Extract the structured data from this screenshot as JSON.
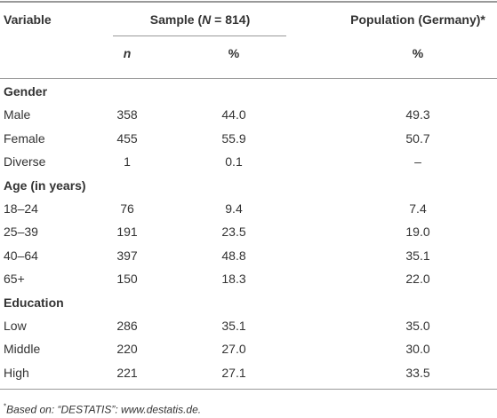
{
  "table": {
    "header": {
      "variable": "Variable",
      "sample": [
        "Sample (",
        "N",
        " = 814)"
      ],
      "population": "Population (Germany)*",
      "n": "n",
      "sample_pct": "%",
      "population_pct": "%"
    },
    "sections": [
      {
        "title": "Gender",
        "rows": [
          [
            "Male",
            "358",
            "44.0",
            "49.3"
          ],
          [
            "Female",
            "455",
            "55.9",
            "50.7"
          ],
          [
            "Diverse",
            "1",
            "0.1",
            "–"
          ]
        ]
      },
      {
        "title": "Age (in years)",
        "rows": [
          [
            "18–24",
            "76",
            "9.4",
            "7.4"
          ],
          [
            "25–39",
            "191",
            "23.5",
            "19.0"
          ],
          [
            "40–64",
            "397",
            "48.8",
            "35.1"
          ],
          [
            "65+",
            "150",
            "18.3",
            "22.0"
          ]
        ]
      },
      {
        "title": "Education",
        "rows": [
          [
            "Low",
            "286",
            "35.1",
            "35.0"
          ],
          [
            "Middle",
            "220",
            "27.0",
            "30.0"
          ],
          [
            "High",
            "221",
            "27.1",
            "33.5"
          ]
        ]
      }
    ]
  },
  "footnote": {
    "marker": "*",
    "text": "Based on: “DESTATIS”: www.destatis.de."
  }
}
